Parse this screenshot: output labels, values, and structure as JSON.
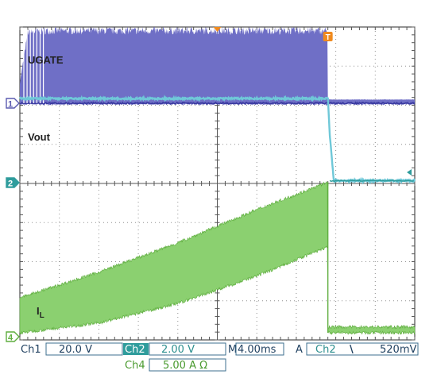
{
  "chart_data": {
    "type": "line",
    "title": "",
    "xlabel": "",
    "ylabel": "",
    "xlim": [
      -20.0,
      20.0
    ],
    "divisions": {
      "x": 10,
      "y": 8
    },
    "grid": true,
    "series": [
      {
        "name": "UGATE",
        "channel": "1",
        "color": "#6f6fc6",
        "edge_color": "#3a3aa0",
        "style": "switching-burst",
        "x": [
          -20.0,
          -19.2,
          -17.6,
          11.2,
          11.2,
          20.0
        ],
        "envelope_top_div": [
          0.55,
          1.9,
          1.95,
          1.95,
          0.1,
          0.1
        ],
        "baseline_div": [
          0,
          0,
          0,
          0,
          0,
          0
        ]
      },
      {
        "name": "Vout",
        "channel": "2",
        "color": "#6fc8d8",
        "x": [
          -20.0,
          11.2,
          11.4,
          11.8,
          20.0
        ],
        "y_div": [
          2.15,
          2.15,
          1.2,
          0.05,
          0.05
        ]
      },
      {
        "name": "I<sub>L</sub>",
        "label_main": "I",
        "label_sub": "L",
        "channel": "4",
        "color": "#8bd070",
        "edge_color": "#5fae3f",
        "style": "ripple-band",
        "x": [
          -20.0,
          -12.0,
          -4.0,
          4.0,
          11.2,
          11.2,
          20.0
        ],
        "band_low_div": [
          0.1,
          0.35,
          0.85,
          1.55,
          2.3,
          0.1,
          0.1
        ],
        "band_high_div": [
          1.0,
          1.65,
          2.4,
          3.25,
          3.95,
          0.25,
          0.25
        ]
      }
    ],
    "markers": {
      "trigger_position_marker": "orange-down-triangle",
      "trigger_label": "T",
      "trigger_time": 11.2,
      "trigger_level_marker": "teal-left-arrow"
    }
  },
  "status": {
    "ch1_label": "Ch1",
    "ch1_scale": "20.0 V",
    "ch2_label": "Ch2",
    "ch2_scale": "2.00 V",
    "ch4_label": "Ch4",
    "ch4_scale": "5.00 A Ω",
    "timebase_label": "M",
    "timebase": "4.00ms",
    "trigger_mode": "A",
    "trigger_source": "Ch2",
    "trigger_slope": "\\",
    "trigger_level": "520mV"
  },
  "colors": {
    "grid": "#8f8f8f",
    "frame": "#2a2a2a",
    "ch2_teal": "#2f9c9c",
    "orange": "#f08a1e",
    "field_border": "#3d6f8f"
  }
}
